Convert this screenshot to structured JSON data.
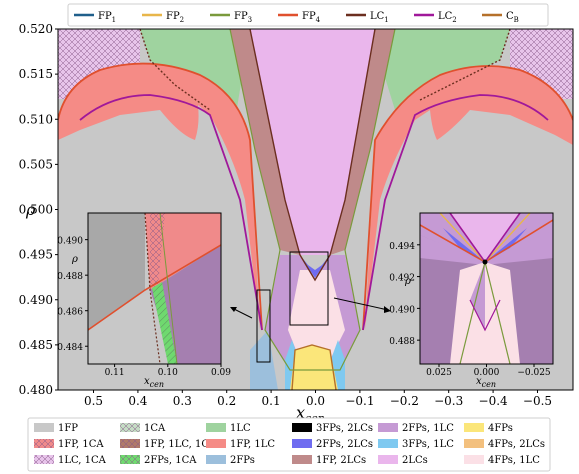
{
  "chart_data": {
    "type": "area",
    "xlabel": "x",
    "xlabel_sub": "cen",
    "ylabel": "ρ",
    "xlim": [
      0.58,
      -0.58
    ],
    "ylim": [
      0.48,
      0.52
    ],
    "xticks": [
      "0.5",
      "0.4",
      "0.3",
      "0.2",
      "0.1",
      "0.0",
      "−0.1",
      "−0.2",
      "−0.3",
      "−0.4",
      "−0.5"
    ],
    "xtick_values": [
      0.5,
      0.4,
      0.3,
      0.2,
      0.1,
      0.0,
      -0.1,
      -0.2,
      -0.3,
      -0.4,
      -0.5
    ],
    "yticks": [
      "0.480",
      "0.485",
      "0.490",
      "0.495",
      "0.500",
      "0.505",
      "0.510",
      "0.515",
      "0.520"
    ],
    "ytick_values": [
      0.48,
      0.485,
      0.49,
      0.495,
      0.5,
      0.505,
      0.51,
      0.515,
      0.52
    ],
    "legend_top": [
      {
        "label": "FP",
        "sub": "1",
        "color": "#1f5f8b"
      },
      {
        "label": "FP",
        "sub": "2",
        "color": "#e8b64a"
      },
      {
        "label": "FP",
        "sub": "3",
        "color": "#7a9a3c"
      },
      {
        "label": "FP",
        "sub": "4",
        "color": "#e0502e"
      },
      {
        "label": "LC",
        "sub": "1",
        "color": "#6b2e1f"
      },
      {
        "label": "LC",
        "sub": "2",
        "color": "#a0189a"
      },
      {
        "label": "C",
        "sub": "B",
        "color": "#b5702a"
      }
    ],
    "legend_bottom": [
      {
        "label": "1FP",
        "color": "#c8c8c8",
        "hatch": false
      },
      {
        "label": "1CA",
        "color": "#c4dcc4",
        "hatch": true
      },
      {
        "label": "1LC",
        "color": "#9fd39f",
        "hatch": false
      },
      {
        "label": "3FPs, 2LCs",
        "color": "#000000",
        "hatch": false
      },
      {
        "label": "2FPs, 1LC",
        "color": "#c59ad4",
        "hatch": false
      },
      {
        "label": "4FPs",
        "color": "#fbe67a",
        "hatch": false
      },
      {
        "label": "1FP, 1CA",
        "color": "#f08a8a",
        "hatch": true
      },
      {
        "label": "1FP, 1LC, 1CA",
        "color": "#b07a6a",
        "hatch": true
      },
      {
        "label": "1FP, 1LC",
        "color": "#f58b86",
        "hatch": false
      },
      {
        "label": "2FPs, 2LCs",
        "color": "#6f6cf0",
        "hatch": false
      },
      {
        "label": "3FPs, 1LC",
        "color": "#7fc9f0",
        "hatch": false
      },
      {
        "label": "4FPs, 2LCs",
        "color": "#f3c07e",
        "hatch": false
      },
      {
        "label": "1LC, 1CA",
        "color": "#e7c4ea",
        "hatch": true
      },
      {
        "label": "2FPs, 1CA",
        "color": "#6fd96f",
        "hatch": true
      },
      {
        "label": "2FPs",
        "color": "#9cbfdc",
        "hatch": false
      },
      {
        "label": "1FP, 2LCs",
        "color": "#bf8a8a",
        "hatch": false
      },
      {
        "label": "2LCs",
        "color": "#eab6ec",
        "hatch": false
      },
      {
        "label": "4FPs, 1LC",
        "color": "#fbe0e6",
        "hatch": false
      }
    ],
    "inset_left": {
      "xlim": [
        0.115,
        0.09
      ],
      "ylim": [
        0.483,
        0.4915
      ],
      "xticks": [
        "0.11",
        "0.10",
        "0.09"
      ],
      "xtick_values": [
        0.11,
        0.1,
        0.09
      ],
      "yticks": [
        "0.484",
        "0.486",
        "0.488",
        "0.490"
      ],
      "ytick_values": [
        0.484,
        0.486,
        0.488,
        0.49
      ],
      "xlabel": "x",
      "xlabel_sub": "cen",
      "ylabel": "ρ"
    },
    "inset_right": {
      "xlim": [
        0.035,
        -0.035
      ],
      "ylim": [
        0.4865,
        0.496
      ],
      "xticks": [
        "0.025",
        "0.000",
        "−0.025"
      ],
      "xtick_values": [
        0.025,
        0.0,
        -0.025
      ],
      "yticks": [
        "0.488",
        "0.490",
        "0.492",
        "0.494"
      ],
      "ytick_values": [
        0.488,
        0.49,
        0.492,
        0.494
      ],
      "xlabel": "x",
      "xlabel_sub": "cen",
      "ylabel": "ρ"
    }
  }
}
